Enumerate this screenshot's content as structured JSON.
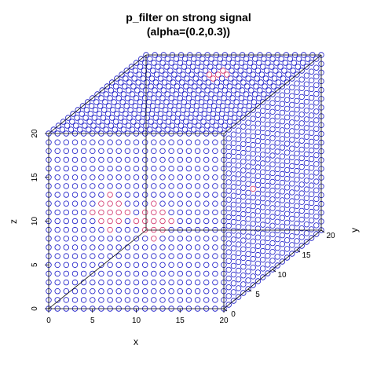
{
  "chart_data": {
    "type": "scatter",
    "plot_kind": "3d-scatterplot",
    "title": "p_filter on strong signal",
    "subtitle": "(alpha=(0.2,0.3))",
    "xlabel": "x",
    "ylabel": "y",
    "zlabel": "z",
    "xlim": [
      0,
      20
    ],
    "ylim": [
      0,
      20
    ],
    "zlim": [
      0,
      20
    ],
    "x_ticks": [
      "0",
      "5",
      "10",
      "15",
      "20"
    ],
    "y_ticks": [
      "0",
      "5",
      "10",
      "15",
      "20"
    ],
    "z_ticks": [
      "0",
      "5",
      "10",
      "15",
      "20"
    ],
    "grid": "full 21x21 lattice on visible faces (front, top, right)",
    "point_shape": "open-circle",
    "point_color": "#1a1ac8",
    "highlight_color": "#d0306a",
    "highlight_clusters": [
      {
        "x": 7,
        "y": 0,
        "z": 11
      },
      {
        "x": 12,
        "y": 0,
        "z": 10
      },
      {
        "x": 18,
        "y": 6,
        "z": 11
      },
      {
        "x": 14,
        "y": 3,
        "z": 6
      },
      {
        "x": 11,
        "y": 15,
        "z": 19
      }
    ]
  }
}
